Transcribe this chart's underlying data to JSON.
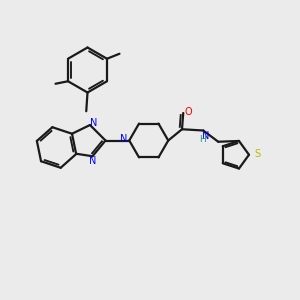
{
  "background_color": "#ebebeb",
  "bond_color": "#1a1a1a",
  "nitrogen_color": "#0000ff",
  "oxygen_color": "#ff0000",
  "sulfur_color": "#b8b800",
  "hydrogen_color": "#2e8b8b",
  "line_width": 1.6,
  "figsize": [
    3.0,
    3.0
  ],
  "dpi": 100,
  "xlim": [
    0,
    12
  ],
  "ylim": [
    0,
    12
  ]
}
